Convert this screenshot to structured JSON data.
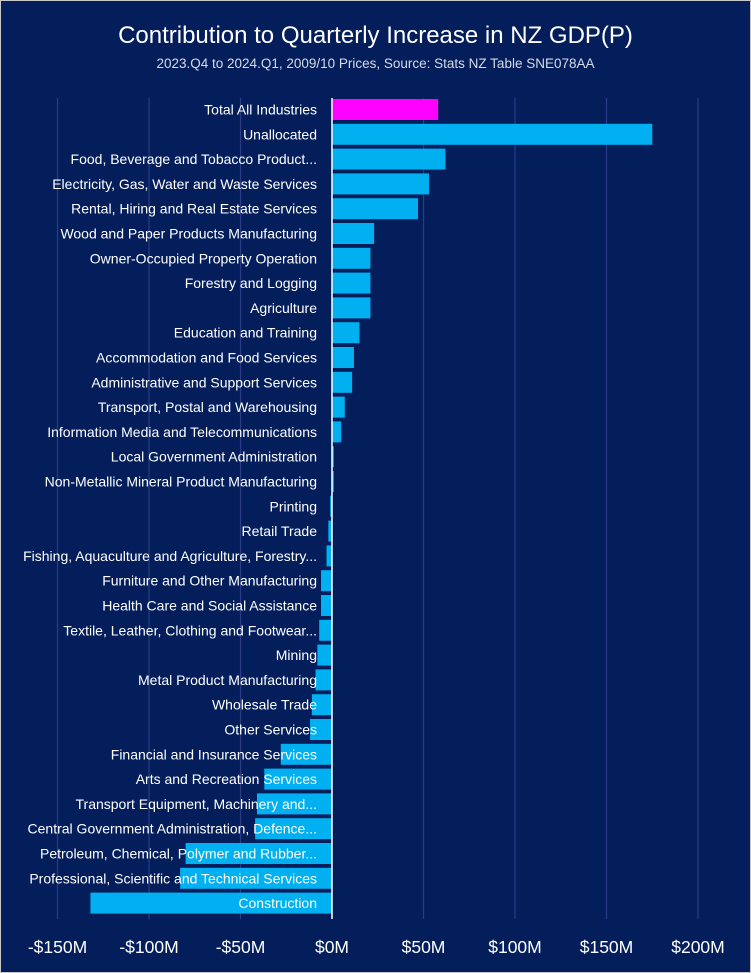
{
  "colors": {
    "background": "#041e5c",
    "bar": "#00b0f0",
    "highlight": "#ff00ff",
    "grid": "#2a3c85",
    "text": "#ffffff",
    "zero_line": "#ffffff"
  },
  "chart_data": {
    "type": "bar",
    "orientation": "horizontal",
    "title": "Contribution to Quarterly Increase in NZ GDP(P)",
    "subtitle": "2023.Q4 to 2024.Q1, 2009/10 Prices, Source: Stats NZ Table SNE078AA",
    "xlabel": "",
    "ylabel": "",
    "xlim": [
      -150,
      200
    ],
    "grid": true,
    "x_ticks": [
      -150,
      -100,
      -50,
      0,
      50,
      100,
      150,
      200
    ],
    "x_tick_labels": [
      "-$150M",
      "-$100M",
      "-$50M",
      "$0M",
      "$50M",
      "$100M",
      "$150M",
      "$200M"
    ],
    "unit": "$M",
    "highlight_category": "Total All Industries",
    "categories": [
      "Total All Industries",
      "Unallocated",
      "Food, Beverage and Tobacco Product...",
      "Electricity, Gas, Water and Waste Services",
      "Rental, Hiring and Real Estate Services",
      "Wood and Paper Products Manufacturing",
      "Owner-Occupied Property Operation",
      "Forestry and Logging",
      "Agriculture",
      "Education and Training",
      "Accommodation and Food Services",
      "Administrative and Support Services",
      "Transport, Postal and Warehousing",
      "Information Media and Telecommunications",
      "Local Government Administration",
      "Non-Metallic Mineral Product Manufacturing",
      "Printing",
      "Retail Trade",
      "Fishing, Aquaculture and Agriculture, Forestry...",
      "Furniture and Other Manufacturing",
      "Health Care and Social Assistance",
      "Textile, Leather, Clothing and Footwear...",
      "Mining",
      "Metal Product Manufacturing",
      "Wholesale Trade",
      "Other Services",
      "Financial and Insurance Services",
      "Arts and Recreation Services",
      "Transport Equipment, Machinery and...",
      "Central Government Administration, Defence...",
      "Petroleum, Chemical, Polymer and Rubber...",
      "Professional, Scientific and Technical Services",
      "Construction"
    ],
    "values": [
      58,
      175,
      62,
      53,
      47,
      23,
      21,
      21,
      21,
      15,
      12,
      11,
      7,
      5,
      1,
      1,
      -1,
      -2,
      -3,
      -6,
      -6,
      -7,
      -8,
      -9,
      -11,
      -12,
      -28,
      -37,
      -41,
      -42,
      -80,
      -83,
      -132
    ]
  }
}
